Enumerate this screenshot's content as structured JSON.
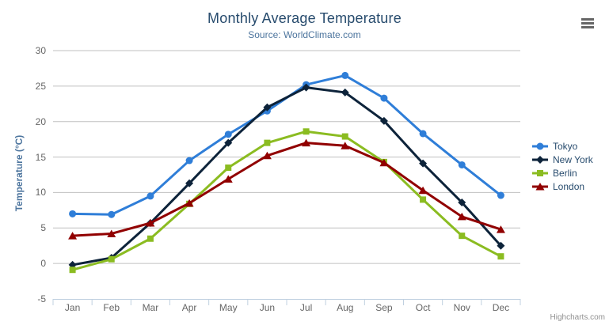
{
  "chart": {
    "title": "Monthly Average Temperature",
    "subtitle": "Source: WorldClimate.com",
    "y_axis_title": "Temperature (°C)",
    "credits": "Highcharts.com",
    "menu_icon": "hamburger-icon"
  },
  "colors": {
    "title_text": "#274b6d",
    "subtitle_text": "#4d759e",
    "axis_label_text": "#666666",
    "grid_line": "#c0c0c0",
    "axis_line": "#c0d0e0",
    "credits_text": "#909090",
    "menu_icon": "#666666"
  },
  "chart_data": {
    "type": "line",
    "title": "Monthly Average Temperature",
    "subtitle": "Source: WorldClimate.com",
    "xlabel": "",
    "ylabel": "Temperature (°C)",
    "ylim": [
      -5,
      30
    ],
    "y_ticks": [
      30,
      25,
      20,
      15,
      10,
      5,
      0,
      -5
    ],
    "grid": "horizontal",
    "legend_position": "right",
    "categories": [
      "Jan",
      "Feb",
      "Mar",
      "Apr",
      "May",
      "Jun",
      "Jul",
      "Aug",
      "Sep",
      "Oct",
      "Nov",
      "Dec"
    ],
    "series": [
      {
        "name": "Tokyo",
        "color": "#2f7ed8",
        "marker": "circle",
        "values": [
          7.0,
          6.9,
          9.5,
          14.5,
          18.2,
          21.5,
          25.2,
          26.5,
          23.3,
          18.3,
          13.9,
          9.6
        ]
      },
      {
        "name": "New York",
        "color": "#0d233a",
        "marker": "diamond",
        "values": [
          -0.2,
          0.8,
          5.7,
          11.3,
          17.0,
          22.0,
          24.8,
          24.1,
          20.1,
          14.1,
          8.6,
          2.5
        ]
      },
      {
        "name": "Berlin",
        "color": "#8bbc21",
        "marker": "square",
        "values": [
          -0.9,
          0.6,
          3.5,
          8.4,
          13.5,
          17.0,
          18.6,
          17.9,
          14.3,
          9.0,
          3.9,
          1.0
        ]
      },
      {
        "name": "London",
        "color": "#910000",
        "marker": "triangle",
        "values": [
          3.9,
          4.2,
          5.7,
          8.5,
          11.9,
          15.2,
          17.0,
          16.6,
          14.2,
          10.3,
          6.6,
          4.8
        ]
      }
    ]
  }
}
